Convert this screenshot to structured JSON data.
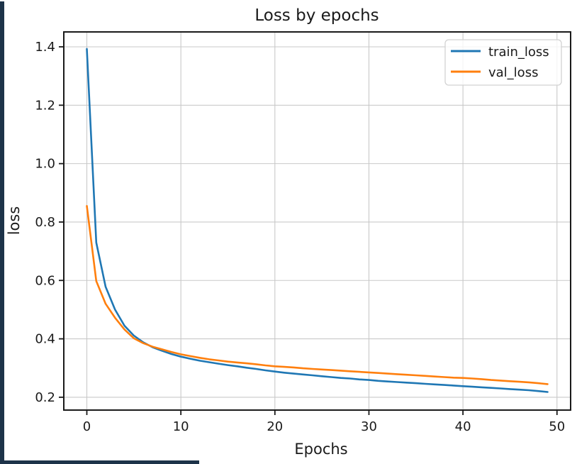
{
  "frame": {
    "left_stripe_color": "#1d3349",
    "bottom_stripe_color": "#1d3349",
    "background_color": "#ffffff"
  },
  "chart_data": {
    "type": "line",
    "title": "Loss by epochs",
    "xlabel": "Epochs",
    "ylabel": "loss",
    "grid": true,
    "legend_position": "upper right",
    "x_ticks": [
      0,
      10,
      20,
      30,
      40,
      50
    ],
    "y_ticks": [
      0.2,
      0.4,
      0.6,
      0.8,
      1.0,
      1.2,
      1.4
    ],
    "xlim": [
      -2.45,
      51.45
    ],
    "ylim": [
      0.156,
      1.451
    ],
    "colors": {
      "grid": "#c9c9c9",
      "spine": "#1a1a1a",
      "text": "#1a1a1a",
      "legend_border": "#d2d2d2"
    },
    "x": [
      0,
      1,
      2,
      3,
      4,
      5,
      6,
      7,
      8,
      9,
      10,
      11,
      12,
      13,
      14,
      15,
      16,
      17,
      18,
      19,
      20,
      21,
      22,
      23,
      24,
      25,
      26,
      27,
      28,
      29,
      30,
      31,
      32,
      33,
      34,
      35,
      36,
      37,
      38,
      39,
      40,
      41,
      42,
      43,
      44,
      45,
      46,
      47,
      48,
      49
    ],
    "series": [
      {
        "name": "train_loss",
        "color": "#1f77b4",
        "values": [
          1.393,
          0.73,
          0.578,
          0.5,
          0.445,
          0.411,
          0.388,
          0.371,
          0.359,
          0.348,
          0.339,
          0.332,
          0.325,
          0.32,
          0.315,
          0.31,
          0.306,
          0.301,
          0.297,
          0.292,
          0.288,
          0.284,
          0.281,
          0.278,
          0.275,
          0.272,
          0.269,
          0.266,
          0.264,
          0.261,
          0.259,
          0.256,
          0.254,
          0.252,
          0.25,
          0.248,
          0.246,
          0.244,
          0.242,
          0.24,
          0.238,
          0.236,
          0.234,
          0.232,
          0.23,
          0.228,
          0.226,
          0.224,
          0.221,
          0.218
        ]
      },
      {
        "name": "val_loss",
        "color": "#ff7f0e",
        "values": [
          0.855,
          0.598,
          0.52,
          0.472,
          0.432,
          0.402,
          0.385,
          0.373,
          0.364,
          0.355,
          0.347,
          0.341,
          0.335,
          0.33,
          0.326,
          0.322,
          0.319,
          0.316,
          0.313,
          0.309,
          0.306,
          0.304,
          0.302,
          0.299,
          0.297,
          0.295,
          0.293,
          0.291,
          0.289,
          0.287,
          0.285,
          0.283,
          0.281,
          0.279,
          0.277,
          0.275,
          0.273,
          0.271,
          0.269,
          0.267,
          0.266,
          0.264,
          0.262,
          0.259,
          0.257,
          0.255,
          0.253,
          0.251,
          0.248,
          0.245
        ]
      }
    ]
  }
}
